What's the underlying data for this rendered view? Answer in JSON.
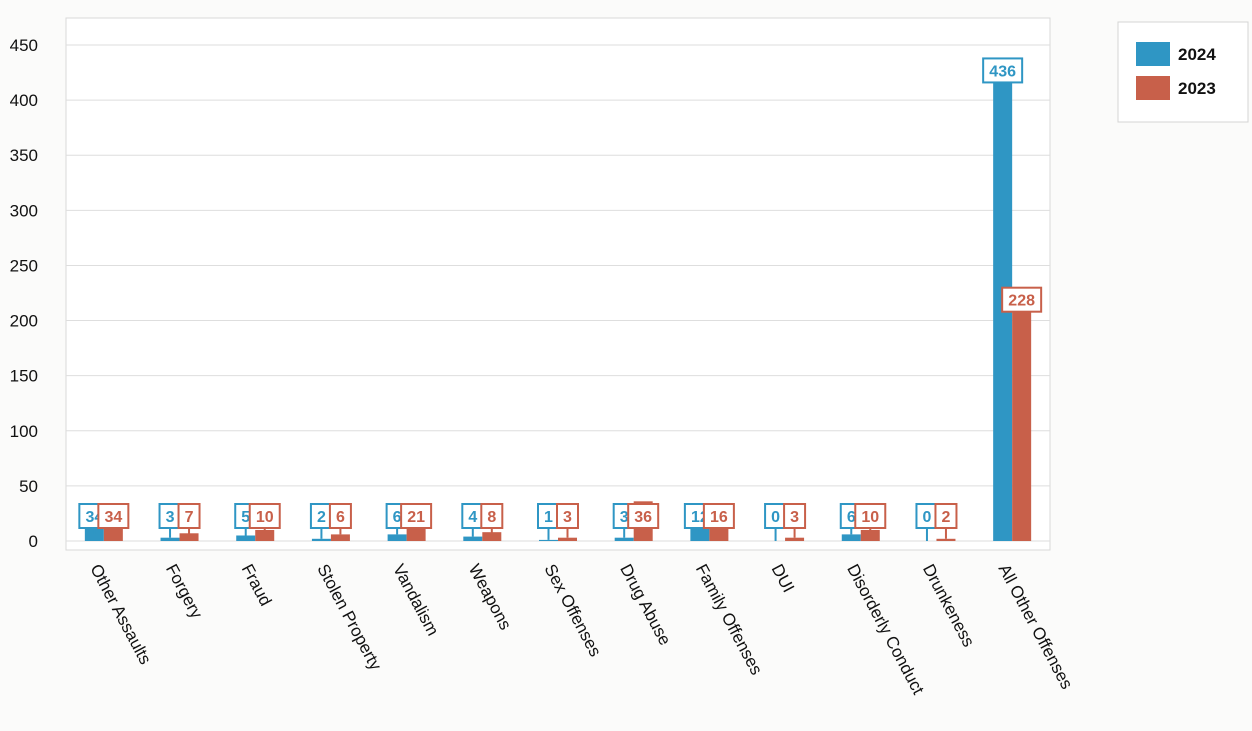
{
  "chart_data": {
    "type": "bar",
    "categories": [
      "Other Assaults",
      "Forgery",
      "Fraud",
      "Stolen Property",
      "Vandalism",
      "Weapons",
      "Sex Offenses",
      "Drug Abuse",
      "Family Offenses",
      "DUI",
      "Disorderly Conduct",
      "Drunkeness",
      "All Other Offenses"
    ],
    "series": [
      {
        "name": "2024",
        "color": "#2f96c4",
        "values": [
          34,
          3,
          5,
          2,
          6,
          4,
          1,
          3,
          12,
          0,
          6,
          0,
          436
        ]
      },
      {
        "name": "2023",
        "color": "#c8604a",
        "values": [
          34,
          7,
          10,
          6,
          21,
          8,
          3,
          36,
          16,
          3,
          10,
          2,
          228
        ]
      }
    ],
    "ylim": [
      0,
      450
    ],
    "yticks": [
      0,
      50,
      100,
      150,
      200,
      250,
      300,
      350,
      400,
      450
    ],
    "grid": true,
    "legend_position": "top-right",
    "title": "",
    "xlabel": "",
    "ylabel": ""
  }
}
